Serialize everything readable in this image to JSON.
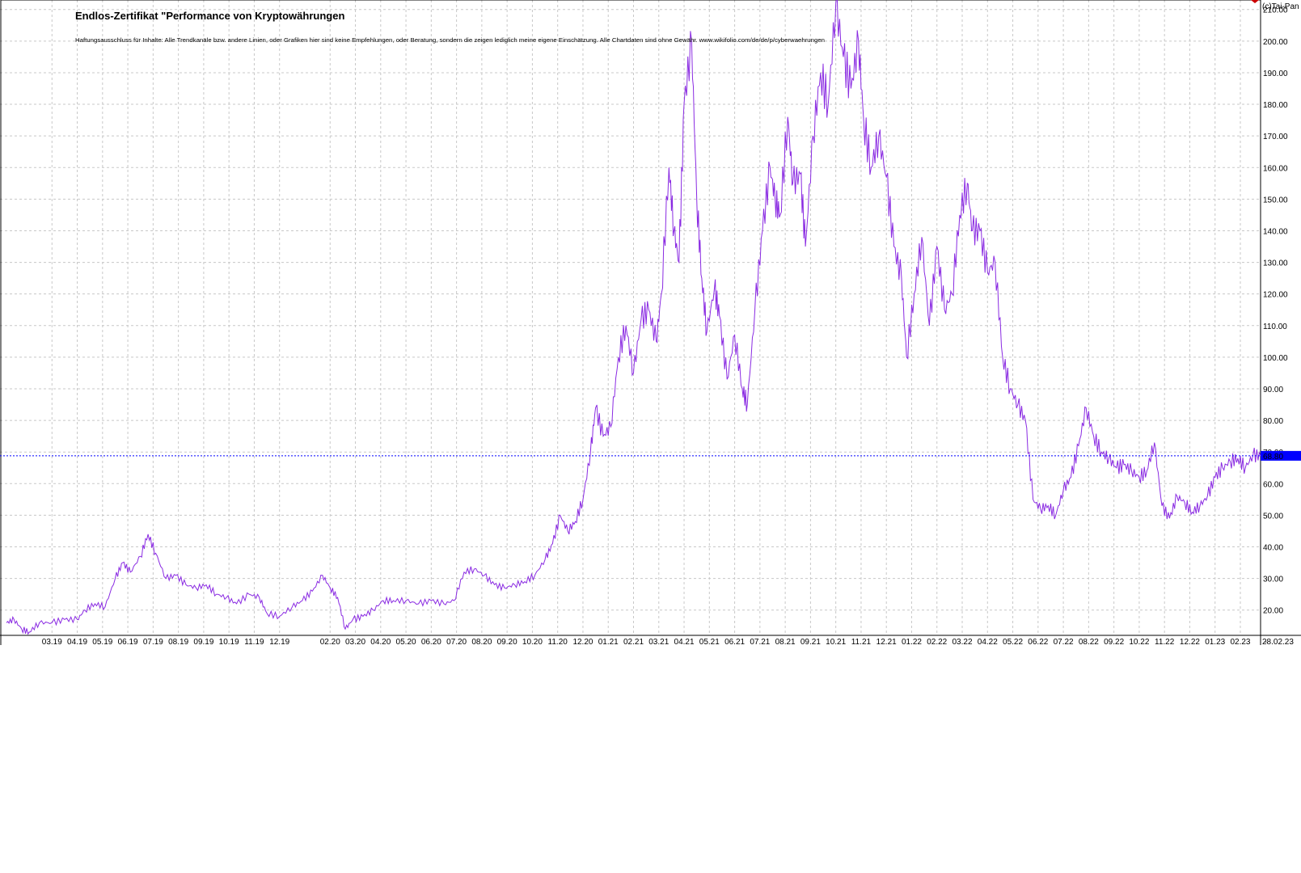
{
  "header": {
    "title": "Endlos-Zertifikat \"Performance von Kryptowährungen",
    "disclaimer": "Haftungsausschluss für Inhalte: Alle Trendkanäle bzw. andere Linien, oder Grafiken hier sind keine Empfehlungen, oder Beratung, sondern die zeigen lediglich meine eigene Einschätzung. Alle Chartdaten sind ohne Gewähr. www.wikifolio.com/de/de/p/cyberwaehrungen",
    "brand": "(c)Tai-Pan"
  },
  "colors": {
    "line": "#8a2be2",
    "last_price_line": "#0000ff",
    "last_price_box": "#0000ff",
    "grid": "#c8c8c8"
  },
  "chart_data": {
    "type": "line",
    "title": "Endlos-Zertifikat \"Performance von Kryptowährungen",
    "xlabel": "",
    "ylabel": "",
    "ylim": [
      12,
      213
    ],
    "y_ticks": [
      "20.00",
      "30.00",
      "40.00",
      "50.00",
      "60.00",
      "70.00",
      "80.00",
      "90.00",
      "100.00",
      "110.00",
      "120.00",
      "130.00",
      "140.00",
      "150.00",
      "160.00",
      "170.00",
      "180.00",
      "190.00",
      "200.00",
      "210.00"
    ],
    "y_tick_values": [
      20,
      30,
      40,
      50,
      60,
      70,
      80,
      90,
      100,
      110,
      120,
      130,
      140,
      150,
      160,
      170,
      180,
      190,
      200,
      210
    ],
    "x_ticks": [
      "03.19",
      "04.19",
      "05.19",
      "06.19",
      "07.19",
      "08.19",
      "09.19",
      "10.19",
      "11.19",
      "12.19",
      "02.20",
      "03.20",
      "04.20",
      "05.20",
      "06.20",
      "07.20",
      "08.20",
      "09.20",
      "10.20",
      "11.20",
      "12.20",
      "01.21",
      "02.21",
      "03.21",
      "04.21",
      "05.21",
      "06.21",
      "07.21",
      "08.21",
      "09.21",
      "10.21",
      "11.21",
      "12.21",
      "01.22",
      "02.22",
      "03.22",
      "04.22",
      "05.22",
      "06.22",
      "07.22",
      "08.22",
      "09.22",
      "10.22",
      "11.22",
      "12.22",
      "01.23",
      "02.23",
      "-"
    ],
    "x_tick_values": [
      2.5,
      3.5,
      4.5,
      5.5,
      6.5,
      7.5,
      8.5,
      9.5,
      10.5,
      11.5,
      13.5,
      14.5,
      15.5,
      16.5,
      17.5,
      18.5,
      19.5,
      20.5,
      21.5,
      22.5,
      23.5,
      24.5,
      25.5,
      26.5,
      27.5,
      28.5,
      29.5,
      30.5,
      31.5,
      32.5,
      33.5,
      34.5,
      35.5,
      36.5,
      37.5,
      38.5,
      39.5,
      40.5,
      41.5,
      42.5,
      43.5,
      44.5,
      45.5,
      46.5,
      47.5,
      48.5,
      49.5,
      50.5
    ],
    "x_range": [
      0.7,
      50.3
    ],
    "end_date_label": "28.02.23",
    "last_value": 68.8,
    "last_value_label": "68.80",
    "grid": true,
    "series": [
      {
        "values": [
          [
            0.7,
            16
          ],
          [
            1.0,
            17
          ],
          [
            1.3,
            14
          ],
          [
            1.6,
            13
          ],
          [
            2.0,
            16
          ],
          [
            2.5,
            16
          ],
          [
            3.0,
            17
          ],
          [
            3.5,
            17
          ],
          [
            3.8,
            20
          ],
          [
            4.2,
            22
          ],
          [
            4.6,
            21
          ],
          [
            5.0,
            30
          ],
          [
            5.3,
            35
          ],
          [
            5.6,
            32
          ],
          [
            6.0,
            37
          ],
          [
            6.3,
            44
          ],
          [
            6.6,
            38
          ],
          [
            7.0,
            30
          ],
          [
            7.4,
            31
          ],
          [
            7.8,
            28
          ],
          [
            8.2,
            27
          ],
          [
            8.6,
            28
          ],
          [
            9.0,
            25
          ],
          [
            9.4,
            24
          ],
          [
            9.8,
            22
          ],
          [
            10.3,
            25
          ],
          [
            10.7,
            24
          ],
          [
            11.0,
            19
          ],
          [
            11.5,
            18
          ],
          [
            12.0,
            21
          ],
          [
            12.4,
            23
          ],
          [
            12.8,
            26
          ],
          [
            13.2,
            31
          ],
          [
            13.5,
            27
          ],
          [
            13.8,
            24
          ],
          [
            14.1,
            14
          ],
          [
            14.4,
            17
          ],
          [
            14.8,
            18
          ],
          [
            15.2,
            20
          ],
          [
            15.6,
            23
          ],
          [
            16.0,
            23
          ],
          [
            16.5,
            23
          ],
          [
            17.0,
            22
          ],
          [
            17.5,
            23
          ],
          [
            18.0,
            22
          ],
          [
            18.4,
            23
          ],
          [
            18.8,
            32
          ],
          [
            19.2,
            33
          ],
          [
            19.6,
            31
          ],
          [
            20.0,
            28
          ],
          [
            20.4,
            27
          ],
          [
            20.8,
            28
          ],
          [
            21.2,
            29
          ],
          [
            21.6,
            31
          ],
          [
            22.0,
            36
          ],
          [
            22.3,
            41
          ],
          [
            22.6,
            50
          ],
          [
            22.9,
            45
          ],
          [
            23.2,
            48
          ],
          [
            23.5,
            55
          ],
          [
            23.8,
            70
          ],
          [
            24.0,
            84
          ],
          [
            24.3,
            75
          ],
          [
            24.6,
            78
          ],
          [
            24.9,
            100
          ],
          [
            25.2,
            110
          ],
          [
            25.5,
            95
          ],
          [
            25.8,
            112
          ],
          [
            26.1,
            115
          ],
          [
            26.4,
            105
          ],
          [
            26.6,
            120
          ],
          [
            26.9,
            160
          ],
          [
            27.1,
            140
          ],
          [
            27.3,
            130
          ],
          [
            27.5,
            180
          ],
          [
            27.8,
            200
          ],
          [
            28.0,
            150
          ],
          [
            28.2,
            125
          ],
          [
            28.4,
            108
          ],
          [
            28.7,
            122
          ],
          [
            28.9,
            113
          ],
          [
            29.2,
            93
          ],
          [
            29.5,
            107
          ],
          [
            29.8,
            90
          ],
          [
            30.0,
            85
          ],
          [
            30.3,
            115
          ],
          [
            30.6,
            140
          ],
          [
            30.9,
            160
          ],
          [
            31.1,
            150
          ],
          [
            31.3,
            145
          ],
          [
            31.6,
            176
          ],
          [
            31.8,
            155
          ],
          [
            32.1,
            158
          ],
          [
            32.3,
            135
          ],
          [
            32.6,
            170
          ],
          [
            32.9,
            190
          ],
          [
            33.2,
            180
          ],
          [
            33.5,
            212
          ],
          [
            33.8,
            195
          ],
          [
            34.1,
            185
          ],
          [
            34.4,
            200
          ],
          [
            34.6,
            175
          ],
          [
            34.9,
            160
          ],
          [
            35.2,
            170
          ],
          [
            35.5,
            157
          ],
          [
            35.8,
            135
          ],
          [
            36.1,
            125
          ],
          [
            36.3,
            100
          ],
          [
            36.6,
            120
          ],
          [
            36.9,
            138
          ],
          [
            37.2,
            110
          ],
          [
            37.5,
            135
          ],
          [
            37.8,
            115
          ],
          [
            38.1,
            120
          ],
          [
            38.4,
            145
          ],
          [
            38.7,
            155
          ],
          [
            38.9,
            140
          ],
          [
            39.2,
            140
          ],
          [
            39.5,
            127
          ],
          [
            39.8,
            130
          ],
          [
            40.1,
            100
          ],
          [
            40.4,
            90
          ],
          [
            40.7,
            85
          ],
          [
            41.0,
            80
          ],
          [
            41.3,
            55
          ],
          [
            41.6,
            52
          ],
          [
            41.9,
            53
          ],
          [
            42.2,
            50
          ],
          [
            42.5,
            58
          ],
          [
            42.8,
            62
          ],
          [
            43.1,
            72
          ],
          [
            43.4,
            84
          ],
          [
            43.7,
            75
          ],
          [
            44.0,
            70
          ],
          [
            44.3,
            68
          ],
          [
            44.6,
            65
          ],
          [
            44.9,
            66
          ],
          [
            45.2,
            64
          ],
          [
            45.5,
            62
          ],
          [
            45.8,
            64
          ],
          [
            46.1,
            73
          ],
          [
            46.4,
            53
          ],
          [
            46.7,
            49
          ],
          [
            47.0,
            56
          ],
          [
            47.3,
            54
          ],
          [
            47.6,
            51
          ],
          [
            47.9,
            53
          ],
          [
            48.2,
            56
          ],
          [
            48.5,
            62
          ],
          [
            48.8,
            65
          ],
          [
            49.1,
            67
          ],
          [
            49.4,
            68
          ],
          [
            49.7,
            65
          ],
          [
            50.0,
            69
          ],
          [
            50.3,
            68.8
          ]
        ]
      }
    ]
  }
}
